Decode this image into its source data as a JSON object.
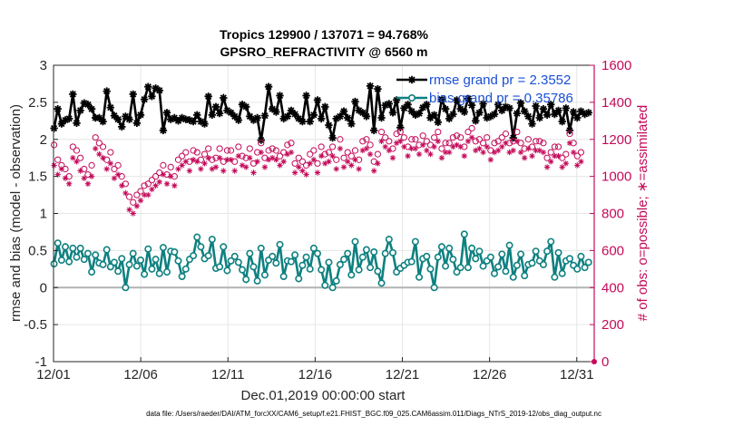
{
  "chart_data": {
    "type": "line",
    "title_line1": "Tropics 129900 / 137071 = 94.768%",
    "title_line2": "GPSRO_REFRACTIVITY @ 6560 m",
    "xlabel": "Dec.01,2019 00:00:00 start",
    "ylabel": "rmse and bias (model - observation)",
    "ylabel_right": "# of obs: o=possible; ∗=assimilated",
    "footer": "data file: /Users/raeder/DAI/ATM_forcXX/CAM6_setup/f.e21.FHIST_BGC.f09_025.CAM6assim.011/Diags_NTrS_2019-12/obs_diag_output.nc",
    "xlim": [
      0,
      31
    ],
    "ylim": [
      -1,
      3
    ],
    "ylim_right": [
      0,
      1600
    ],
    "x_tick_values": [
      0,
      5,
      10,
      15,
      20,
      25,
      30
    ],
    "x_tick_labels": [
      "12/01",
      "12/06",
      "12/11",
      "12/16",
      "12/21",
      "12/26",
      "12/31"
    ],
    "y_ticks": [
      -1,
      -0.5,
      0,
      0.5,
      1,
      1.5,
      2,
      2.5,
      3
    ],
    "y_tick_labels": [
      "-1",
      "-0.5",
      "0",
      "0.5",
      "1",
      "1.5",
      "2",
      "2.5",
      "3"
    ],
    "y_ticks_right": [
      0,
      200,
      400,
      600,
      800,
      1000,
      1200,
      1400,
      1600
    ],
    "grid": true,
    "legend_position": "top-right",
    "colors": {
      "rmse": "#000000",
      "bias": "#0e8080",
      "obs": "#c40a5a",
      "legend_text": "#1a4fd6",
      "zero_line": "#b3b3b3"
    },
    "series": [
      {
        "name": "rmse grand pr = 2.3552",
        "legend": "rmse grand pr = 2.3552",
        "marker": "star",
        "values": [
          2.15,
          2.41,
          2.21,
          2.26,
          2.28,
          2.61,
          2.22,
          2.39,
          2.49,
          2.47,
          2.41,
          2.29,
          2.29,
          2.24,
          2.65,
          2.43,
          2.32,
          2.27,
          2.17,
          2.31,
          2.27,
          2.61,
          2.22,
          2.33,
          2.54,
          2.71,
          2.58,
          2.69,
          2.66,
          2.12,
          2.36,
          2.27,
          2.29,
          2.25,
          2.29,
          2.27,
          2.26,
          2.24,
          2.33,
          2.24,
          2.21,
          2.58,
          2.33,
          2.44,
          2.35,
          2.56,
          2.39,
          2.36,
          2.31,
          2.26,
          2.47,
          2.44,
          2.31,
          2.26,
          2.29,
          1.99,
          2.32,
          2.71,
          2.41,
          2.37,
          2.59,
          2.28,
          2.31,
          2.39,
          2.34,
          2.28,
          2.24,
          2.59,
          2.24,
          2.33,
          2.53,
          2.28,
          2.44,
          2.19,
          2.02,
          2.28,
          2.31,
          2.38,
          2.29,
          2.21,
          2.51,
          2.39,
          2.36,
          2.31,
          2.72,
          2.12,
          2.68,
          2.29,
          2.46,
          2.48,
          2.36,
          2.53,
          2.16,
          2.42,
          2.47,
          2.38,
          2.33,
          2.35,
          2.43,
          2.47,
          2.29,
          2.33,
          2.23,
          2.54,
          2.41,
          2.28,
          2.34,
          2.53,
          2.41,
          2.37,
          2.55,
          2.46,
          2.25,
          2.36,
          2.48,
          2.29,
          2.31,
          2.34,
          2.47,
          2.39,
          2.44,
          2.42,
          2.02,
          2.35,
          2.49,
          2.38,
          2.31,
          2.21,
          2.45,
          2.29,
          2.41,
          2.33,
          2.47,
          2.34,
          2.39,
          2.24,
          2.42,
          2.12,
          2.37,
          2.29,
          2.38,
          2.34,
          2.36
        ],
        "x_start": 0.03,
        "x_step": 0.2158
      },
      {
        "name": "bias grand pr = 0.35786",
        "legend": "bias grand pr = 0.35786",
        "marker": "circle",
        "values": [
          0.32,
          0.6,
          0.37,
          0.55,
          0.35,
          0.53,
          0.41,
          0.53,
          0.38,
          0.46,
          0.21,
          0.44,
          0.33,
          0.31,
          0.51,
          0.28,
          0.34,
          0.22,
          0.39,
          0.0,
          0.31,
          0.46,
          0.29,
          0.37,
          0.18,
          0.52,
          0.25,
          0.38,
          0.19,
          0.54,
          0.21,
          0.49,
          0.48,
          0.36,
          0.15,
          0.25,
          0.38,
          0.43,
          0.68,
          0.55,
          0.39,
          0.43,
          0.65,
          0.26,
          0.28,
          0.55,
          0.23,
          0.36,
          0.42,
          0.34,
          0.24,
          0.11,
          0.46,
          0.28,
          0.09,
          0.53,
          0.17,
          0.37,
          0.42,
          0.33,
          0.58,
          0.15,
          0.36,
          0.35,
          0.44,
          0.12,
          0.3,
          0.41,
          0.25,
          0.53,
          0.46,
          0.24,
          0.03,
          0.34,
          0.0,
          0.09,
          0.31,
          0.38,
          0.46,
          0.17,
          0.62,
          0.24,
          0.41,
          0.51,
          0.27,
          0.48,
          0.22,
          0.06,
          0.46,
          0.65,
          0.47,
          0.21,
          0.26,
          0.3,
          0.34,
          0.35,
          0.62,
          0.14,
          0.39,
          0.42,
          0.25,
          0.0,
          0.41,
          0.55,
          0.29,
          0.53,
          0.38,
          0.21,
          0.27,
          0.72,
          0.27,
          0.53,
          0.39,
          0.49,
          0.29,
          0.36,
          0.41,
          0.19,
          0.28,
          0.45,
          0.22,
          0.57,
          0.14,
          0.3,
          0.45,
          0.16,
          0.31,
          0.33,
          0.49,
          0.36,
          0.31,
          0.49,
          0.62,
          0.14,
          0.47,
          0.19,
          0.36,
          0.39,
          0.3,
          0.25,
          0.42,
          0.27,
          0.34
        ],
        "x_start": 0.03,
        "x_step": 0.2158
      },
      {
        "name": "possible obs",
        "marker": "open-circle",
        "axis": "right",
        "values": [
          1170,
          1090,
          1060,
          1040,
          1000,
          1160,
          1140,
          1100,
          1040,
          1010,
          1060,
          1210,
          1180,
          1160,
          1090,
          1130,
          1040,
          1060,
          1000,
          960,
          890,
          860,
          900,
          920,
          950,
          960,
          980,
          1000,
          1020,
          1060,
          1010,
          1050,
          1000,
          1090,
          1110,
          1130,
          1080,
          1140,
          1130,
          1090,
          1120,
          1150,
          1090,
          1100,
          1150,
          1080,
          1140,
          1140,
          1080,
          1160,
          1110,
          1100,
          1150,
          1070,
          1130,
          1180,
          1100,
          1140,
          1150,
          1140,
          1110,
          1130,
          1170,
          1180,
          1070,
          1100,
          1080,
          1060,
          1120,
          1140,
          1070,
          1160,
          1120,
          1130,
          1160,
          1090,
          1200,
          1100,
          1130,
          1110,
          1140,
          1090,
          1190,
          1200,
          1170,
          1080,
          1120,
          1240,
          1210,
          1190,
          1150,
          1230,
          1240,
          1210,
          1160,
          1200,
          1200,
          1170,
          1220,
          1190,
          1170,
          1210,
          1240,
          1150,
          1180,
          1180,
          1210,
          1220,
          1210,
          1160,
          1240,
          1260,
          1190,
          1200,
          1180,
          1210,
          1140,
          1180,
          1190,
          1210,
          1230,
          1180,
          1190,
          1240,
          1180,
          1150,
          1200,
          1160,
          1190,
          1190,
          1180,
          1100,
          1130,
          1160,
          1160,
          1100,
          1120,
          1230,
          1180,
          1110,
          1130
        ],
        "x_start": 0.03,
        "x_step": 0.2158
      },
      {
        "name": "assimilated obs",
        "marker": "star",
        "axis": "right",
        "values": [
          1060,
          1010,
          1040,
          990,
          960,
          1100,
          1080,
          1030,
          990,
          960,
          1000,
          1150,
          1120,
          1100,
          1040,
          1070,
          990,
          1010,
          950,
          910,
          820,
          800,
          840,
          870,
          900,
          900,
          930,
          950,
          970,
          1010,
          960,
          1000,
          950,
          1040,
          1060,
          1080,
          1030,
          1090,
          1080,
          1040,
          1070,
          1100,
          1040,
          1050,
          1100,
          1030,
          1090,
          1090,
          1030,
          1110,
          1060,
          1050,
          1100,
          1020,
          1080,
          1130,
          1050,
          1090,
          1100,
          1090,
          1060,
          1080,
          1120,
          1130,
          1020,
          1050,
          1030,
          1010,
          1070,
          1090,
          1020,
          1110,
          1070,
          1080,
          1110,
          1040,
          1150,
          1050,
          1080,
          1060,
          1090,
          1040,
          1140,
          1150,
          1120,
          1030,
          1070,
          1190,
          1160,
          1140,
          1100,
          1180,
          1190,
          1160,
          1110,
          1150,
          1150,
          1120,
          1170,
          1140,
          1120,
          1160,
          1190,
          1100,
          1130,
          1130,
          1160,
          1170,
          1160,
          1110,
          1190,
          1210,
          1140,
          1150,
          1130,
          1160,
          1090,
          1130,
          1140,
          1160,
          1180,
          1130,
          1140,
          1190,
          1130,
          1100,
          1150,
          1110,
          1140,
          1140,
          1130,
          1050,
          1080,
          1110,
          1110,
          1050,
          1070,
          1180,
          1130,
          1060,
          1080
        ],
        "x_start": 0.03,
        "x_step": 0.2158
      }
    ]
  }
}
